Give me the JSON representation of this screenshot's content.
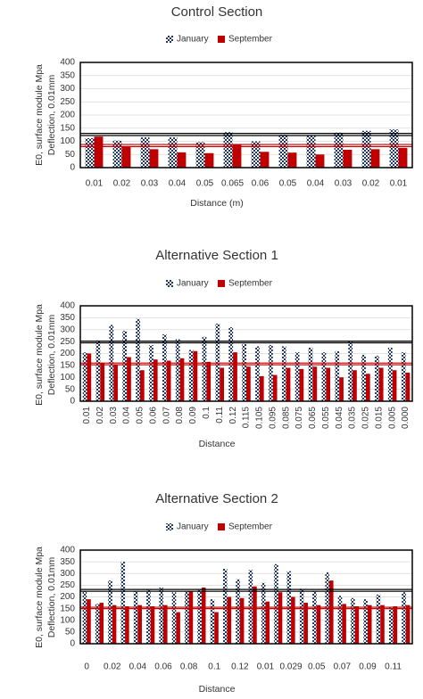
{
  "chart_data": [
    {
      "type": "bar",
      "title": "Control Section",
      "xlabel": "Distance (m)",
      "ylabel": [
        "E0, surface module Mpa",
        "Deflection, 0.01mm"
      ],
      "categories": [
        "0.01",
        "0.02",
        "0.03",
        "0.04",
        "0.05",
        "0.065",
        "0.06",
        "0.05",
        "0.04",
        "0.03",
        "0.02",
        "0.01"
      ],
      "series": [
        {
          "name": "January",
          "color": "#1f3864",
          "values": [
            112,
            103,
            115,
            115,
            97,
            135,
            100,
            125,
            122,
            133,
            140,
            145
          ]
        },
        {
          "name": "September",
          "color": "#c00000",
          "values": [
            118,
            80,
            70,
            58,
            55,
            88,
            60,
            57,
            50,
            68,
            70,
            75
          ]
        }
      ],
      "reference_lines": [
        {
          "value": 122,
          "color": "#000000"
        },
        {
          "value": 130,
          "color": "#000000"
        },
        {
          "value": 80,
          "color": "#c00000"
        },
        {
          "value": 88,
          "color": "#c00000"
        }
      ],
      "ylim": [
        0,
        400
      ],
      "yticks": [
        0,
        50,
        100,
        150,
        200,
        250,
        300,
        350,
        400
      ],
      "grid": true
    },
    {
      "type": "bar",
      "title": "Alternative Section 1",
      "xlabel": "Distance",
      "ylabel": [
        "E0, surface module Mpa",
        "Deflection, 0.01mm"
      ],
      "categories": [
        "0.01",
        "0.02",
        "0.03",
        "0.04",
        "0.05",
        "0.06",
        "0.07",
        "0.08",
        "0.09",
        "0.1",
        "0.11",
        "0.12",
        "0.115",
        "0.105",
        "0.095",
        "0.085",
        "0.075",
        "0.065",
        "0.055",
        "0.045",
        "0.035",
        "0.025",
        "0.015",
        "0.005",
        "0.000"
      ],
      "series": [
        {
          "name": "January",
          "color": "#1f3864",
          "values": [
            205,
            255,
            320,
            295,
            345,
            235,
            280,
            260,
            215,
            270,
            325,
            310,
            240,
            230,
            235,
            230,
            205,
            225,
            205,
            210,
            250,
            195,
            190,
            225,
            205
          ]
        },
        {
          "name": "September",
          "color": "#c00000",
          "values": [
            200,
            160,
            155,
            185,
            130,
            175,
            170,
            180,
            210,
            165,
            140,
            205,
            145,
            105,
            110,
            140,
            135,
            145,
            140,
            100,
            130,
            115,
            140,
            130,
            120
          ]
        }
      ],
      "reference_lines": [
        {
          "value": 245,
          "color": "#000000"
        },
        {
          "value": 252,
          "color": "#000000"
        },
        {
          "value": 153,
          "color": "#c00000"
        },
        {
          "value": 160,
          "color": "#c00000"
        }
      ],
      "ylim": [
        0,
        400
      ],
      "yticks": [
        0,
        50,
        100,
        150,
        200,
        250,
        300,
        350,
        400
      ],
      "grid": true
    },
    {
      "type": "bar",
      "title": "Alternative Section  2",
      "xlabel": "Distance",
      "ylabel": [
        "E0, surface module Mpa",
        "Deflection, 0.01mm"
      ],
      "categories": [
        "0",
        null,
        "0.02",
        null,
        "0.04",
        null,
        "0.06",
        null,
        "0.08",
        null,
        "0.1",
        null,
        "0.12",
        null,
        "0.01",
        null,
        "0.029",
        null,
        "0.05",
        null,
        "0.07",
        null,
        "0.09",
        null,
        "0.11",
        null
      ],
      "series": [
        {
          "name": "January",
          "color": "#1f3864",
          "values": [
            225,
            170,
            270,
            350,
            225,
            230,
            240,
            220,
            225,
            230,
            190,
            320,
            275,
            315,
            260,
            340,
            310,
            235,
            225,
            305,
            205,
            195,
            190,
            210,
            155,
            220
          ]
        },
        {
          "name": "September",
          "color": "#c00000",
          "values": [
            190,
            175,
            165,
            160,
            165,
            160,
            165,
            135,
            225,
            240,
            135,
            200,
            195,
            245,
            180,
            220,
            200,
            175,
            165,
            270,
            170,
            160,
            165,
            165,
            160,
            165
          ]
        }
      ],
      "reference_lines": [
        {
          "value": 224,
          "color": "#000000"
        },
        {
          "value": 232,
          "color": "#000000"
        },
        {
          "value": 150,
          "color": "#c00000"
        },
        {
          "value": 156,
          "color": "#c00000"
        }
      ],
      "ylim": [
        0,
        400
      ],
      "yticks": [
        0,
        50,
        100,
        150,
        200,
        250,
        300,
        350,
        400
      ],
      "grid": true
    }
  ]
}
